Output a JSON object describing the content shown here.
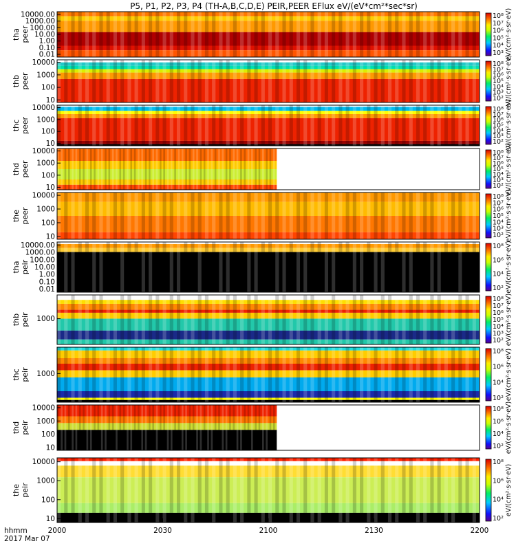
{
  "chart_data": {
    "type": "heatmap",
    "title": "P5, P1, P2, P3, P4 (TH-A,B,C,D,E) PEIR,PEER EFlux eV/(eV*cm²*sec*sr)",
    "x_ticks": [
      "2000",
      "2030",
      "2100",
      "2130",
      "2200"
    ],
    "x_tick_frac": [
      0,
      0.25,
      0.5,
      0.75,
      1
    ],
    "time_label_1": "hhmm",
    "time_label_2": "2017 Mar 07",
    "panels": [
      {
        "label1": "tha",
        "label2": "peer",
        "yticks": [
          "10000.00",
          "1000.00",
          "100.00",
          "10.00",
          "1.00",
          "0.10",
          "0.01"
        ],
        "cb": [
          "10⁸",
          "10⁷",
          "10⁶",
          "10⁵",
          "10⁴",
          "10³"
        ],
        "cb_label": "eV/(cm²·s·sr·eV)",
        "bands": [
          [
            "#ff7a00",
            0,
            0.1
          ],
          [
            "#ffcc00",
            0.1,
            0.2
          ],
          [
            "#ff9900",
            0.2,
            0.45
          ],
          [
            "#b00000",
            0.45,
            0.75
          ],
          [
            "#e01000",
            0.75,
            0.85
          ],
          [
            "#ff5500",
            0.85,
            1
          ]
        ],
        "data_end": 1
      },
      {
        "label1": "thb",
        "label2": "peer",
        "yticks": [
          "10000",
          "1000",
          "100",
          "10"
        ],
        "cb": [
          "10⁸",
          "10⁷",
          "10⁶",
          "10⁵",
          "10⁴",
          "10³",
          "10²"
        ],
        "cb_label": "eV/(cm²·s·sr·eV)",
        "bands": [
          [
            "#ffffff",
            0,
            0.06
          ],
          [
            "#22c8c8",
            0.06,
            0.14
          ],
          [
            "#00e0b0",
            0.14,
            0.22
          ],
          [
            "#ddee00",
            0.22,
            0.3
          ],
          [
            "#ff9900",
            0.3,
            0.45
          ],
          [
            "#ee2200",
            0.45,
            1
          ]
        ],
        "data_end": 1
      },
      {
        "label1": "thc",
        "label2": "peer",
        "yticks": [
          "10000",
          "1000",
          "100",
          "10"
        ],
        "cb": [
          "10⁸",
          "10⁷",
          "10⁶",
          "10⁵",
          "10⁴",
          "10³",
          "10²"
        ],
        "cb_label": "eV/(cm²·s·sr·eV)",
        "bands": [
          [
            "#ffffff",
            0,
            0.04
          ],
          [
            "#00bbee",
            0.04,
            0.14
          ],
          [
            "#ffff00",
            0.14,
            0.22
          ],
          [
            "#ff9900",
            0.22,
            0.32
          ],
          [
            "#ee2200",
            0.32,
            0.88
          ],
          [
            "#990000",
            0.88,
            0.96
          ],
          [
            "#000000",
            0.96,
            1
          ]
        ],
        "data_end": 1
      },
      {
        "label1": "thd",
        "label2": "peer",
        "yticks": [
          "10000",
          "1000",
          "100",
          "10"
        ],
        "cb": [
          "10⁸",
          "10⁷",
          "10⁶",
          "10⁵",
          "10⁴",
          "10³",
          "10²"
        ],
        "cb_label": "eV/(cm²·s·sr·eV)",
        "bands": [
          [
            "#ff6a00",
            0,
            0.3
          ],
          [
            "#ffcc00",
            0.3,
            0.5
          ],
          [
            "#ccee33",
            0.5,
            0.75
          ],
          [
            "#ffcc00",
            0.75,
            0.88
          ],
          [
            "#ff4400",
            0.88,
            1
          ]
        ],
        "data_end": 0.52
      },
      {
        "label1": "the",
        "label2": "peer",
        "yticks": [
          "10000",
          "1000",
          "100",
          "10"
        ],
        "cb": [
          "10⁸",
          "10⁷",
          "10⁶",
          "10⁵",
          "10⁴",
          "10³",
          "10²"
        ],
        "cb_label": "eV/(cm²·s·sr·eV)",
        "bands": [
          [
            "#ff9900",
            0,
            0.2
          ],
          [
            "#ffbb00",
            0.2,
            0.5
          ],
          [
            "#ff7700",
            0.5,
            0.85
          ],
          [
            "#ff4400",
            0.85,
            1
          ]
        ],
        "data_end": 1
      },
      {
        "label1": "tha",
        "label2": "peir",
        "yticks": [
          "10000.00",
          "1000.00",
          "100.00",
          "10.00",
          "1.00",
          "0.10",
          "0.01"
        ],
        "cb": [
          "10⁸",
          "10⁶",
          "10⁴",
          "10²"
        ],
        "cb_label": "eV/(cm²·s·sr·eV)",
        "bands": [
          [
            "#ffffff",
            0,
            0.04
          ],
          [
            "#ff9900",
            0.04,
            0.12
          ],
          [
            "#ffcc33",
            0.12,
            0.2
          ],
          [
            "#000000",
            0.2,
            1
          ]
        ],
        "data_end": 1
      },
      {
        "label1": "thb",
        "label2": "peir",
        "yticks": [
          "1000"
        ],
        "cb": [
          "10⁸",
          "10⁷",
          "10⁶",
          "10⁵",
          "10⁴",
          "10³",
          "10²"
        ],
        "cb_label": "eV/(cm²·s·sr·eV)",
        "bands": [
          [
            "#ffffff",
            0,
            0.1
          ],
          [
            "#ffdd00",
            0.1,
            0.18
          ],
          [
            "#ff8800",
            0.18,
            0.3
          ],
          [
            "#ee2200",
            0.3,
            0.36
          ],
          [
            "#ffcc00",
            0.36,
            0.48
          ],
          [
            "#22c8aa",
            0.48,
            0.72
          ],
          [
            "#1a2a88",
            0.72,
            0.9
          ],
          [
            "#22c8aa",
            0.9,
            1
          ]
        ],
        "data_end": 1
      },
      {
        "label1": "thc",
        "label2": "peir",
        "yticks": [
          "1000"
        ],
        "cb": [
          "10⁸",
          "10⁶",
          "10⁴",
          "10²"
        ],
        "cb_label": "eV/(cm²·s·sr·eV)",
        "bands": [
          [
            "#22dddd",
            0,
            0.06
          ],
          [
            "#ffcc00",
            0.06,
            0.2
          ],
          [
            "#ff8800",
            0.2,
            0.3
          ],
          [
            "#ee2200",
            0.3,
            0.42
          ],
          [
            "#ffcc00",
            0.42,
            0.55
          ],
          [
            "#00aaee",
            0.55,
            0.8
          ],
          [
            "#1a2aaa",
            0.8,
            0.92
          ],
          [
            "#ffff00",
            0.92,
            0.96
          ],
          [
            "#000000",
            0.96,
            1
          ]
        ],
        "data_end": 1
      },
      {
        "label1": "thd",
        "label2": "peir",
        "yticks": [
          "10000",
          "1000",
          "100",
          "10"
        ],
        "cb": [
          "10⁸",
          "10⁶",
          "10⁴",
          "10²"
        ],
        "cb_label": "eV/(cm²·s·sr·eV)",
        "bands": [
          [
            "#ee2200",
            0,
            0.25
          ],
          [
            "#ff7700",
            0.25,
            0.4
          ],
          [
            "#ccdd33",
            0.4,
            0.55
          ],
          [
            "#000000",
            0.55,
            1
          ]
        ],
        "data_end": 0.52
      },
      {
        "label1": "the",
        "label2": "peir",
        "yticks": [
          "10000",
          "1000",
          "100",
          "10"
        ],
        "cb": [
          "10⁸",
          "10⁶",
          "10⁴",
          "10²"
        ],
        "cb_label": "eV/(cm²·s·sr·eV)",
        "bands": [
          [
            "#ff2200",
            0,
            0.05
          ],
          [
            "#ffffff",
            0,
            0
          ],
          [
            "#ffdd33",
            0.12,
            0.3
          ],
          [
            "#ccee55",
            0.3,
            0.7
          ],
          [
            "#aaee66",
            0.7,
            0.85
          ],
          [
            "#000000",
            0.85,
            1
          ]
        ],
        "data_end": 1
      }
    ]
  }
}
